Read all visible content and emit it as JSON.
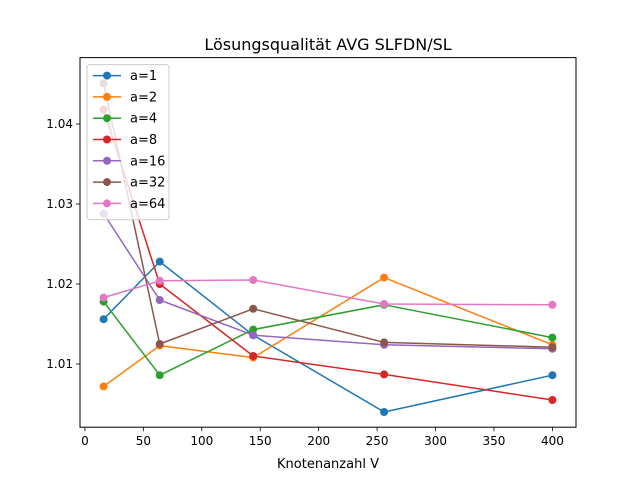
{
  "chart_data": {
    "type": "line",
    "title": "Lösungsqualität AVG SLFDN/SL",
    "xlabel": "Knotenanzahl V",
    "ylabel": "",
    "xlim": [
      -4.2,
      420.2
    ],
    "ylim": [
      1.0021,
      1.0483
    ],
    "xticks": [
      0,
      50,
      100,
      150,
      200,
      250,
      300,
      350,
      400
    ],
    "xtick_labels": [
      "0",
      "50",
      "100",
      "150",
      "200",
      "250",
      "300",
      "350",
      "400"
    ],
    "yticks": [
      1.01,
      1.02,
      1.03,
      1.04
    ],
    "ytick_labels": [
      "1.01",
      "1.02",
      "1.03",
      "1.04"
    ],
    "grid": false,
    "legend_position": "upper-left",
    "x": [
      16,
      64,
      144,
      256,
      400
    ],
    "series": [
      {
        "name": "a=1",
        "color": "#1f77b4",
        "values": [
          1.0156,
          1.0228,
          1.0136,
          1.004,
          1.0086
        ]
      },
      {
        "name": "a=2",
        "color": "#ff7f0e",
        "values": [
          1.0072,
          1.0123,
          1.0108,
          1.0208,
          1.0124
        ]
      },
      {
        "name": "a=4",
        "color": "#2ca02c",
        "values": [
          1.0178,
          1.0086,
          1.0143,
          1.0174,
          1.0133
        ]
      },
      {
        "name": "a=8",
        "color": "#d62728",
        "values": [
          1.0418,
          1.02,
          1.011,
          1.0087,
          1.0055
        ]
      },
      {
        "name": "a=16",
        "color": "#9467bd",
        "values": [
          1.0288,
          1.018,
          1.0136,
          1.0124,
          1.0119
        ]
      },
      {
        "name": "a=32",
        "color": "#8c564b",
        "values": [
          1.0451,
          1.0125,
          1.0169,
          1.0127,
          1.0121
        ]
      },
      {
        "name": "a=64",
        "color": "#e377c2",
        "values": [
          1.0183,
          1.0204,
          1.0205,
          1.0175,
          1.0174
        ]
      }
    ]
  }
}
